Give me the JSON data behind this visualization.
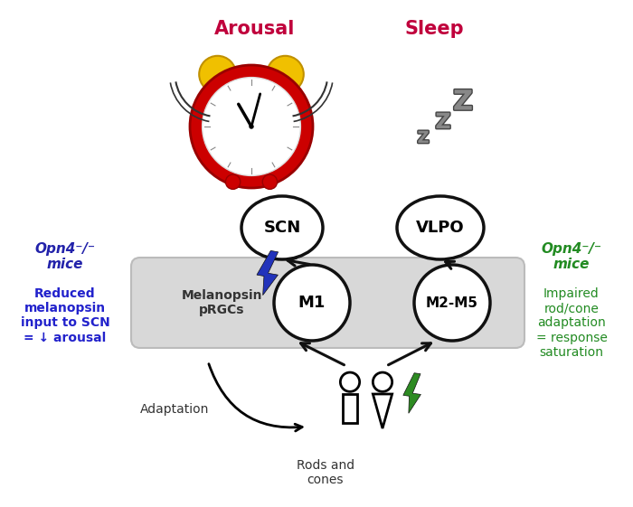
{
  "bg_color": "#ffffff",
  "arousal_label": "Arousal",
  "sleep_label": "Sleep",
  "arousal_color": "#c0003c",
  "sleep_color": "#c0003c",
  "scn_label": "SCN",
  "vlpo_label": "VLPO",
  "m1_label": "M1",
  "m2m5_label": "M2-M5",
  "melanopsin_label": "Melanopsin\npRGCs",
  "adaptation_label": "Adaptation",
  "rods_cones_label": "Rods and\ncones",
  "left_title": "Opn4⁻/⁻\nmice",
  "left_title_color": "#2222aa",
  "left_body": "Reduced\nmelanopsin\ninput to SCN\n= ↓ arousal",
  "left_body_color": "#2222cc",
  "right_title": "Opn4⁻/⁻\nmice",
  "right_title_color": "#228B22",
  "right_body": "Impaired\nrod/cone\nadaptation\n= response\nsaturation",
  "right_body_color": "#228B22",
  "box_facecolor": "#d8d8d8",
  "box_edgecolor": "#bbbbbb",
  "circle_edge": "#111111",
  "arrow_color": "#111111",
  "blue_bolt_color": "#2233bb",
  "green_bolt_color": "#2d8b22"
}
